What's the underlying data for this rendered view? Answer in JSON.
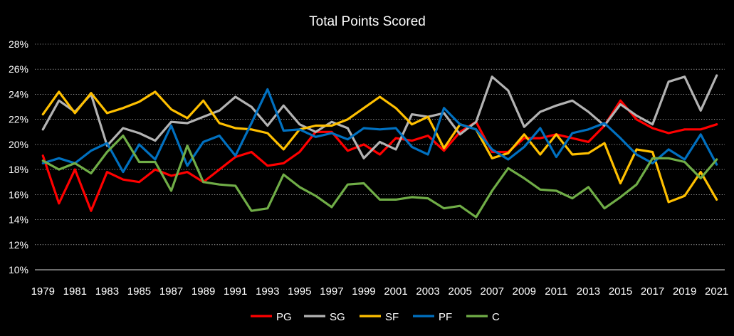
{
  "chart_data": {
    "type": "line",
    "title": "Total Points Scored",
    "xlabel": "",
    "ylabel": "",
    "x_start": 1979,
    "x_end": 2021,
    "x_tick_labels": [
      "1979",
      "1981",
      "1983",
      "1985",
      "1987",
      "1989",
      "1991",
      "1993",
      "1995",
      "1997",
      "1999",
      "2001",
      "2003",
      "2005",
      "2007",
      "2009",
      "2011",
      "2013",
      "2015",
      "2017",
      "2019",
      "2021"
    ],
    "ylim": [
      10,
      28
    ],
    "y_ticks": [
      10,
      12,
      14,
      16,
      18,
      20,
      22,
      24,
      26,
      28
    ],
    "y_tick_labels": [
      "10%",
      "12%",
      "14%",
      "16%",
      "18%",
      "20%",
      "22%",
      "24%",
      "26%",
      "28%"
    ],
    "grid": true,
    "legend_position": "bottom",
    "series": [
      {
        "name": "PG",
        "color": "#ff0000",
        "values": [
          19.1,
          15.3,
          18.0,
          14.7,
          17.8,
          17.2,
          17.0,
          18.0,
          17.5,
          17.8,
          17.0,
          18.0,
          19.0,
          19.4,
          18.3,
          18.5,
          19.4,
          21.0,
          21.0,
          19.5,
          20.0,
          19.2,
          20.5,
          20.3,
          20.7,
          19.5,
          21.0,
          21.8,
          19.4,
          19.4,
          20.5,
          20.5,
          20.8,
          20.5,
          20.2,
          21.5,
          23.5,
          22.0,
          21.3,
          20.9,
          21.2,
          21.2,
          21.6
        ]
      },
      {
        "name": "SG",
        "color": "#b3b3b3",
        "values": [
          21.2,
          23.5,
          22.6,
          24.0,
          19.9,
          21.3,
          20.9,
          20.3,
          21.8,
          21.7,
          22.2,
          22.7,
          23.8,
          23.0,
          21.5,
          23.1,
          21.6,
          21.0,
          21.8,
          21.3,
          18.9,
          20.2,
          19.6,
          22.4,
          22.2,
          22.5,
          20.8,
          21.8,
          25.4,
          24.3,
          21.4,
          22.6,
          23.1,
          23.5,
          22.6,
          21.5,
          23.2,
          22.3,
          21.6,
          25.0,
          25.4,
          22.7,
          25.5
        ]
      },
      {
        "name": "SF",
        "color": "#ffc000",
        "values": [
          22.4,
          24.2,
          22.5,
          24.1,
          22.5,
          22.9,
          23.4,
          24.2,
          22.8,
          22.1,
          23.5,
          21.7,
          21.3,
          21.2,
          20.9,
          19.6,
          21.2,
          21.5,
          21.5,
          22.0,
          22.9,
          23.8,
          22.9,
          21.6,
          22.2,
          19.7,
          21.6,
          21.2,
          18.9,
          19.3,
          20.8,
          19.2,
          20.8,
          19.2,
          19.3,
          20.1,
          16.9,
          19.6,
          19.4,
          15.4,
          15.9,
          17.8,
          15.6
        ]
      },
      {
        "name": "PF",
        "color": "#0070c0",
        "values": [
          18.5,
          18.9,
          18.5,
          19.5,
          20.1,
          17.8,
          20.0,
          18.8,
          21.5,
          18.3,
          20.2,
          20.7,
          19.1,
          21.7,
          24.4,
          21.1,
          21.2,
          20.6,
          20.9,
          20.4,
          21.3,
          21.2,
          21.3,
          19.8,
          19.2,
          22.9,
          21.6,
          21.2,
          19.6,
          18.8,
          19.8,
          21.3,
          19.0,
          20.9,
          21.2,
          21.7,
          20.5,
          19.2,
          18.5,
          19.6,
          18.8,
          20.8,
          18.4
        ]
      },
      {
        "name": "C",
        "color": "#70ad47",
        "values": [
          18.7,
          18.0,
          18.5,
          17.7,
          19.4,
          20.7,
          18.6,
          18.6,
          16.3,
          19.9,
          17.0,
          16.8,
          16.7,
          14.7,
          14.9,
          17.6,
          16.6,
          15.9,
          15.0,
          16.8,
          16.9,
          15.6,
          15.6,
          15.8,
          15.7,
          14.9,
          15.1,
          14.2,
          16.3,
          18.1,
          17.3,
          16.4,
          16.3,
          15.7,
          16.6,
          14.9,
          15.8,
          16.8,
          18.9,
          18.9,
          18.6,
          17.3,
          18.8
        ]
      }
    ]
  }
}
